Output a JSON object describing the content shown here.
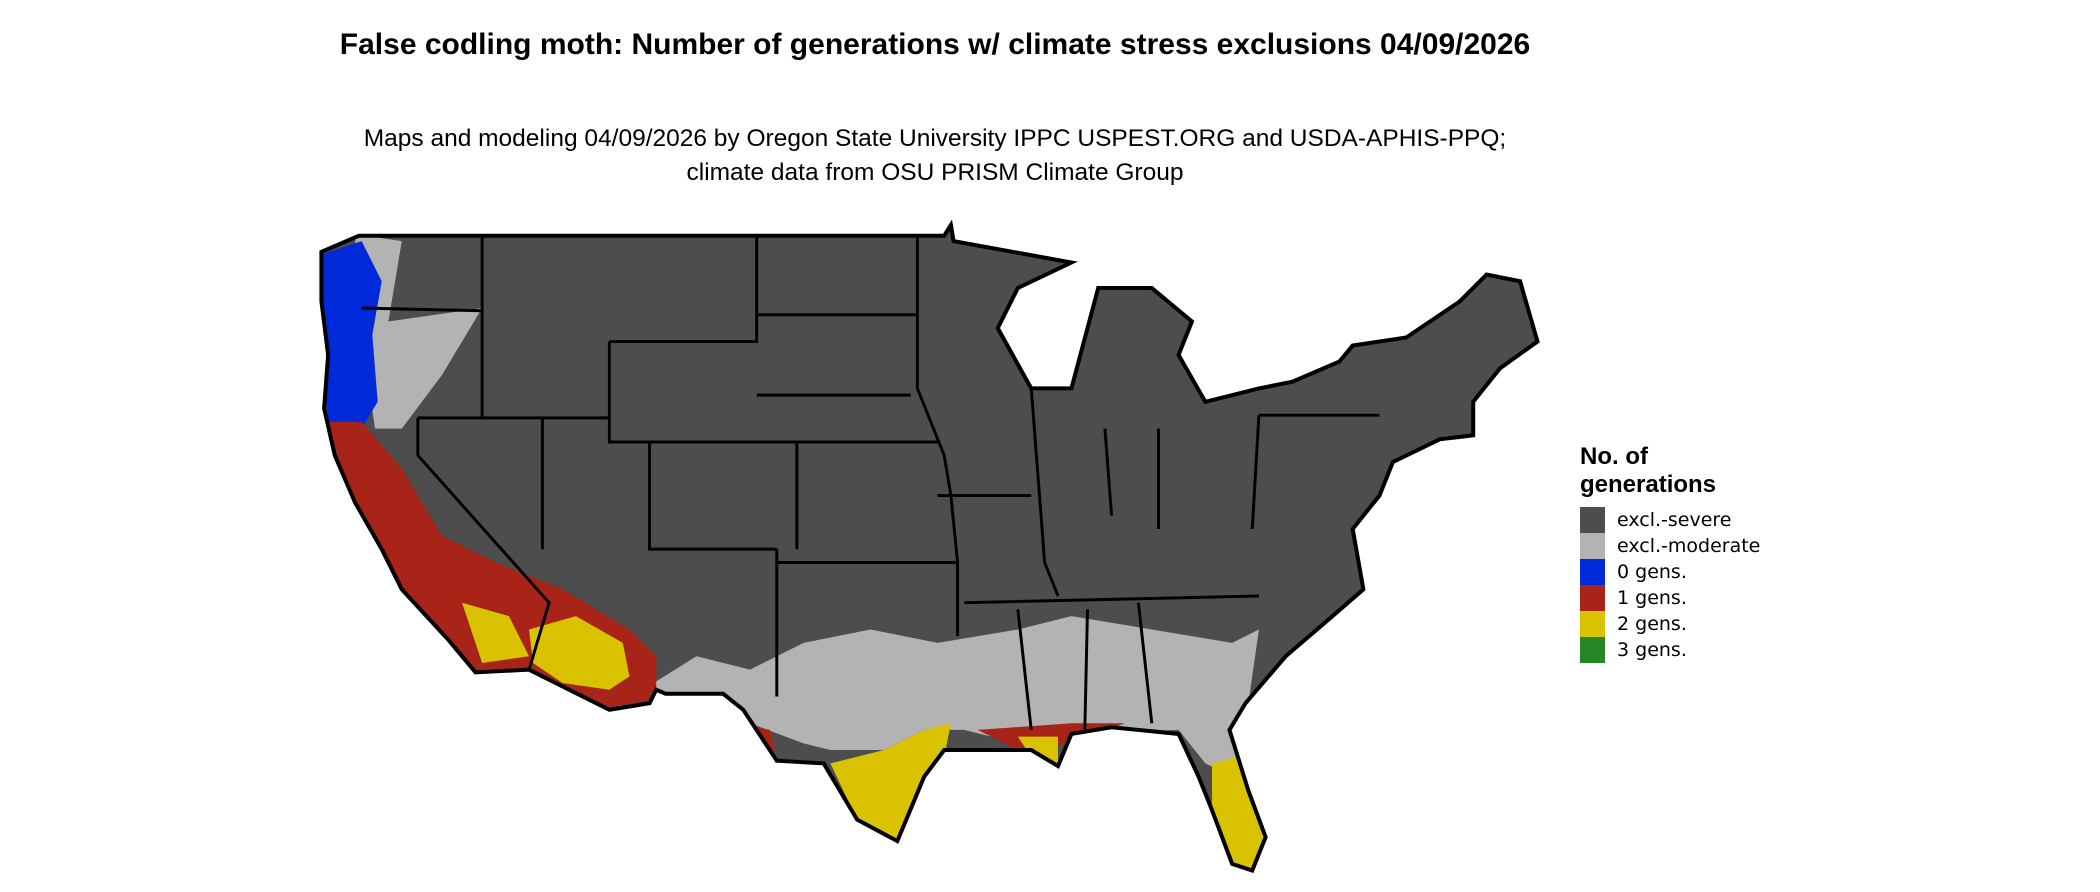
{
  "title": "False codling moth: Number of generations w/ climate stress exclusions 04/09/2026",
  "subtitle": "Maps and modeling 04/09/2026 by Oregon State University IPPC USPEST.ORG and USDA-APHIS-PPQ; climate data from OSU PRISM Climate Group",
  "legend": {
    "title": "No. of generations",
    "items": [
      {
        "label": "excl.-severe",
        "color": "#4d4d4d"
      },
      {
        "label": "excl.-moderate",
        "color": "#b3b3b3"
      },
      {
        "label": "0 gens.",
        "color": "#0029d9"
      },
      {
        "label": "1 gens.",
        "color": "#a82418"
      },
      {
        "label": "2 gens.",
        "color": "#d9c300"
      },
      {
        "label": "3 gens.",
        "color": "#268726"
      }
    ]
  }
}
